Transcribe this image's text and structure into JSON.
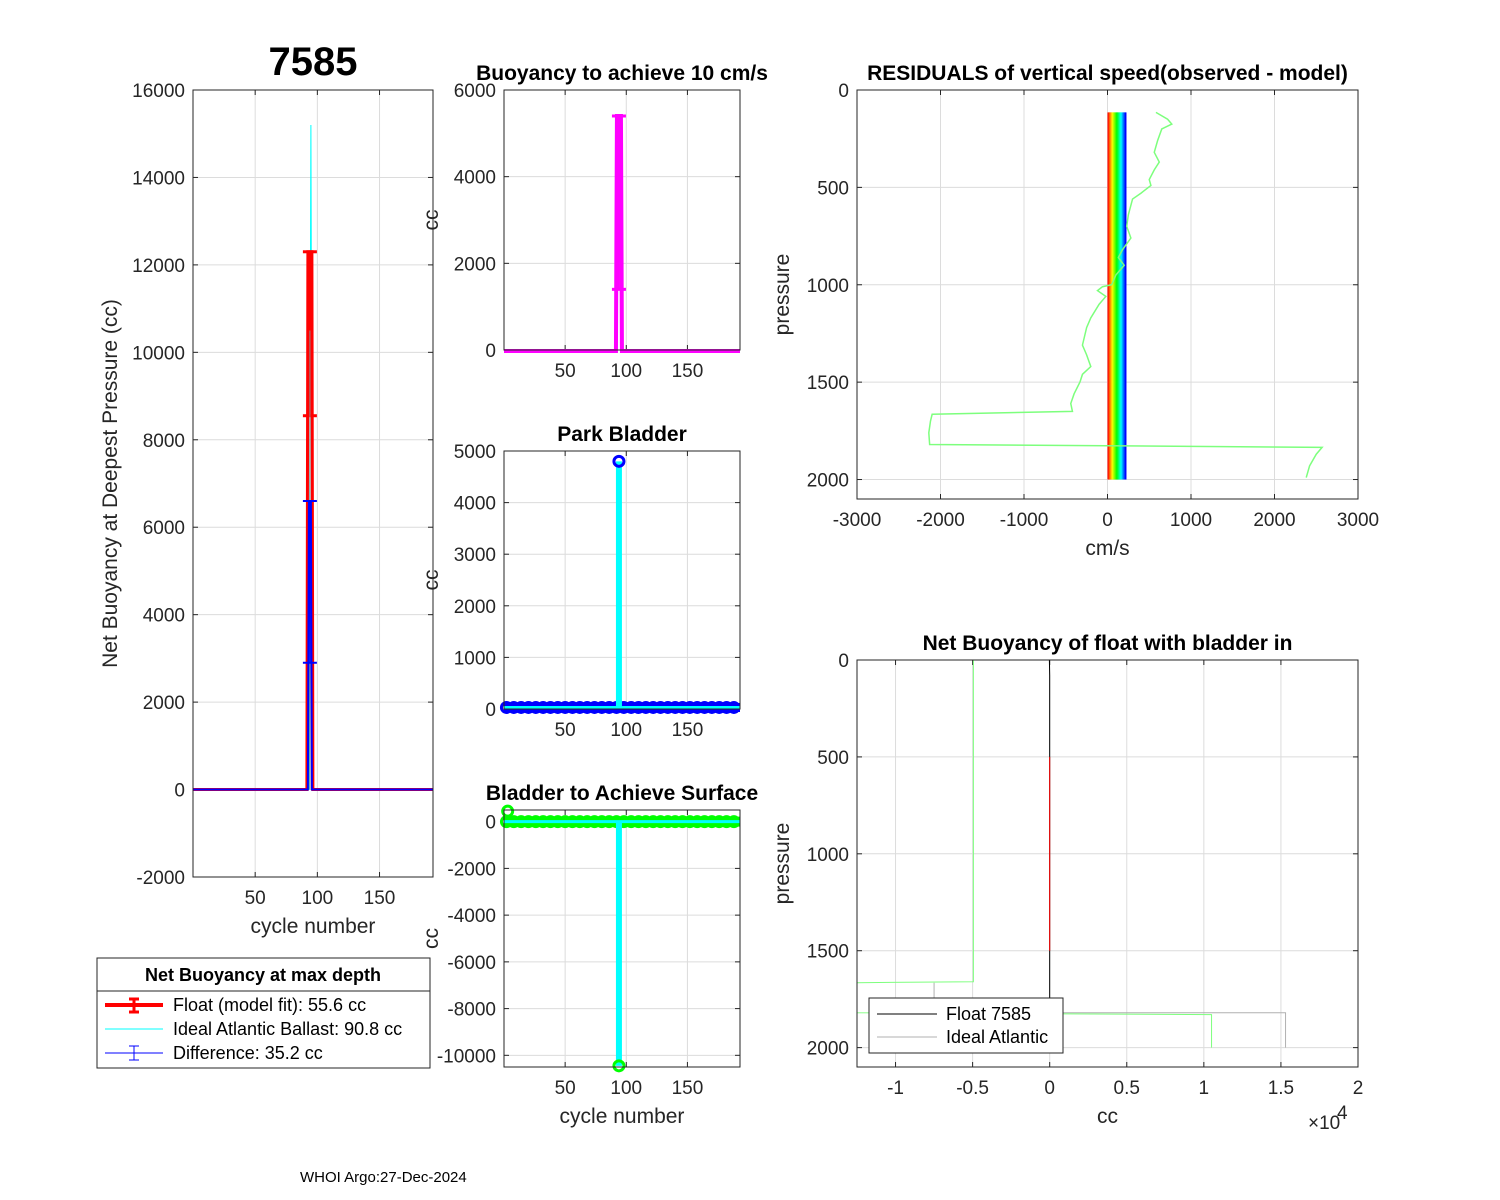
{
  "figure_title": "7585",
  "footer": "WHOI Argo:27-Dec-2024",
  "colors": {
    "red": "#ff0000",
    "cyan": "#00ffff",
    "blue": "#0000ff",
    "magenta": "#ff00ff",
    "green": "#00ff00",
    "lightgreen": "#7dff7d",
    "gray": "#b0b0b0",
    "black": "#000000"
  },
  "legend1": {
    "title": "Net Buoyancy at max depth",
    "items": [
      "Float (model fit):  55.6 cc",
      "Ideal Atlantic Ballast:  90.8 cc",
      "Difference:  35.2 cc"
    ]
  },
  "legend2": {
    "items": [
      "Float 7585",
      "Ideal Atlantic"
    ]
  },
  "chart_data": [
    {
      "id": "net-buoyancy",
      "type": "line",
      "title": "7585",
      "xlabel": "cycle number",
      "ylabel": "Net Buoyancy at Deepest Pressure (cc)",
      "xlim": [
        0,
        193
      ],
      "ylim": [
        -2000,
        16000
      ],
      "xticks": [
        50,
        100,
        150
      ],
      "yticks": [
        -2000,
        0,
        2000,
        4000,
        6000,
        8000,
        10000,
        12000,
        14000,
        16000
      ],
      "spike_cycle": 94,
      "series": [
        {
          "name": "Float (model fit)",
          "color": "red",
          "baseline": 0,
          "spike": 12300,
          "errorbar": [
            8550,
            12300
          ]
        },
        {
          "name": "Ideal Atlantic Ballast",
          "color": "cyan",
          "baseline": 0,
          "spike": 15200
        },
        {
          "name": "Difference",
          "color": "blue",
          "baseline": 0,
          "spike": 6600,
          "errorbar": [
            2900,
            6600
          ]
        }
      ]
    },
    {
      "id": "buoyancy-10cms",
      "type": "line",
      "title": "Buoyancy to achieve 10 cm/s",
      "xlabel": "",
      "ylabel": "cc",
      "xlim": [
        0,
        193
      ],
      "ylim": [
        0,
        6000
      ],
      "xticks": [
        50,
        100,
        150
      ],
      "yticks": [
        0,
        2000,
        4000,
        6000
      ],
      "spike_cycle": 94,
      "series": [
        {
          "name": "buoyancy",
          "color": "magenta",
          "baseline": 0,
          "spike": 5400,
          "errorbar": [
            1400,
            5400
          ]
        }
      ]
    },
    {
      "id": "park-bladder",
      "type": "scatter",
      "title": "Park Bladder",
      "xlabel": "",
      "ylabel": "cc",
      "xlim": [
        0,
        193
      ],
      "ylim": [
        0,
        5000
      ],
      "xticks": [
        50,
        100,
        150
      ],
      "yticks": [
        0,
        1000,
        2000,
        3000,
        4000,
        5000
      ],
      "spike_cycle": 94,
      "series": [
        {
          "name": "park",
          "marker_color": "blue",
          "line_color": "cyan",
          "baseline": 30,
          "spike": 4800
        }
      ]
    },
    {
      "id": "bladder-surface",
      "type": "scatter",
      "title": "Bladder to Achieve Surface",
      "xlabel": "cycle number",
      "ylabel": "cc",
      "xlim": [
        0,
        193
      ],
      "ylim": [
        -10500,
        500
      ],
      "xticks": [
        50,
        100,
        150
      ],
      "yticks": [
        -10000,
        -8000,
        -6000,
        -4000,
        -2000,
        0
      ],
      "spike_cycle": 94,
      "series": [
        {
          "name": "surface",
          "marker_color": "green",
          "line_color": "cyan",
          "baseline": 0,
          "spike": -10450,
          "first_point": [
            3,
            450
          ]
        }
      ]
    },
    {
      "id": "residuals",
      "type": "line",
      "title": "RESIDUALS of vertical speed(observed - model)",
      "xlabel": "cm/s",
      "ylabel": "pressure",
      "xlim": [
        -3000,
        3000
      ],
      "ylim": [
        0,
        2100
      ],
      "yreverse": true,
      "xticks": [
        -3000,
        -2000,
        -1000,
        0,
        1000,
        2000,
        3000
      ],
      "yticks": [
        0,
        500,
        1000,
        1500,
        2000
      ],
      "band": {
        "x_from": 0,
        "x_to": 220,
        "p_from": 115,
        "p_to": 2000
      },
      "series": [
        {
          "name": "residual profile",
          "color": "lightgreen",
          "points": [
            [
              580,
              115
            ],
            [
              720,
              150
            ],
            [
              770,
              175
            ],
            [
              650,
              200
            ],
            [
              600,
              260
            ],
            [
              560,
              320
            ],
            [
              620,
              370
            ],
            [
              560,
              410
            ],
            [
              500,
              460
            ],
            [
              520,
              490
            ],
            [
              400,
              530
            ],
            [
              300,
              560
            ],
            [
              250,
              640
            ],
            [
              230,
              700
            ],
            [
              280,
              760
            ],
            [
              180,
              820
            ],
            [
              130,
              860
            ],
            [
              200,
              900
            ],
            [
              100,
              950
            ],
            [
              50,
              1000
            ],
            [
              -60,
              1010
            ],
            [
              -120,
              1030
            ],
            [
              -20,
              1060
            ],
            [
              -100,
              1100
            ],
            [
              -200,
              1170
            ],
            [
              -250,
              1220
            ],
            [
              -300,
              1310
            ],
            [
              -250,
              1360
            ],
            [
              -200,
              1420
            ],
            [
              -300,
              1460
            ],
            [
              -330,
              1500
            ],
            [
              -400,
              1560
            ],
            [
              -440,
              1610
            ],
            [
              -420,
              1650
            ],
            [
              -2100,
              1665
            ],
            [
              -2120,
              1700
            ],
            [
              -2140,
              1760
            ],
            [
              -2130,
              1820
            ],
            [
              2570,
              1835
            ],
            [
              2500,
              1870
            ],
            [
              2420,
              1930
            ],
            [
              2380,
              1990
            ]
          ]
        }
      ]
    },
    {
      "id": "net-buoyancy-bladder",
      "type": "line",
      "title": "Net Buoyancy of float with bladder in",
      "xlabel": "cc",
      "ylabel": "pressure",
      "xlim": [
        -12500,
        20000
      ],
      "ylim": [
        0,
        2100
      ],
      "yreverse": true,
      "xticks": [
        -10000,
        -5000,
        0,
        5000,
        10000,
        15000,
        20000
      ],
      "xticklabels": [
        "-1",
        "-0.5",
        "0",
        "0.5",
        "1",
        "1.5",
        "2"
      ],
      "exponent": "×10",
      "exponent_power": "4",
      "yticks": [
        0,
        500,
        1000,
        1500,
        2000
      ],
      "series": [
        {
          "name": "Float 7585",
          "color": "black",
          "points": [
            [
              -20,
              0
            ],
            [
              0,
              80
            ],
            [
              0,
              1650
            ],
            [
              0,
              1820
            ]
          ]
        },
        {
          "name": "Ideal Atlantic",
          "color": "gray",
          "points": [
            [
              -7500,
              1665
            ],
            [
              -7500,
              1820
            ],
            [
              15300,
              1820
            ],
            [
              15300,
              2000
            ]
          ]
        },
        {
          "name": "green profile",
          "color": "lightgreen",
          "points": [
            [
              -4950,
              0
            ],
            [
              -4950,
              1660
            ],
            [
              -12500,
              1665
            ],
            [
              -12500,
              1820
            ],
            [
              10500,
              1830
            ],
            [
              10500,
              2000
            ]
          ]
        },
        {
          "name": "red profile",
          "color": "red",
          "points": [
            [
              0,
              500
            ],
            [
              0,
              1000
            ],
            [
              0,
              1500
            ]
          ]
        }
      ]
    }
  ]
}
